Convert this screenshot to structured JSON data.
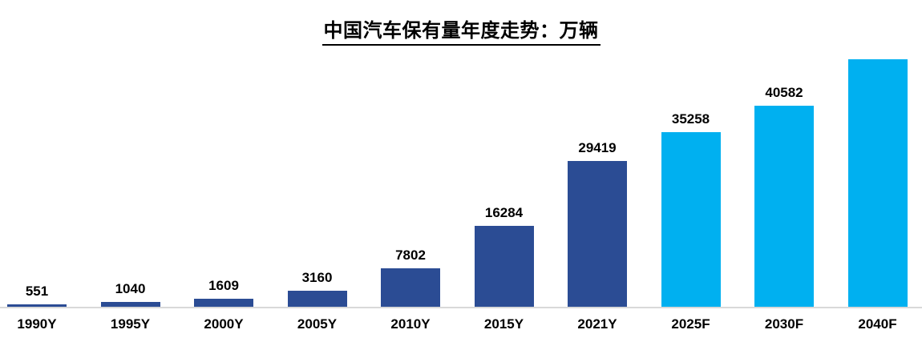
{
  "chart_data": {
    "type": "bar",
    "title": "中国汽车保有量年度走势：万辆",
    "categories": [
      "1990Y",
      "1995Y",
      "2000Y",
      "2005Y",
      "2010Y",
      "2015Y",
      "2021Y",
      "2025F",
      "2030F",
      "2040F"
    ],
    "values": [
      551,
      1040,
      1609,
      3160,
      7802,
      16284,
      29419,
      35258,
      40582,
      50000
    ],
    "data_labels": [
      "551",
      "1040",
      "1609",
      "3160",
      "7802",
      "16284",
      "29419",
      "35258",
      "40582",
      ""
    ],
    "ylim": [
      0,
      50000
    ],
    "xlabel": "",
    "ylabel": "",
    "grid": false,
    "legend_position": "none",
    "forecast_start_index": 7,
    "colors": {
      "historical_bar": "#2b4c94",
      "forecast_bar": "#00b0f0",
      "axis_line": "#d9d9d9",
      "label_text": "#000000",
      "title_text": "#000000"
    }
  }
}
